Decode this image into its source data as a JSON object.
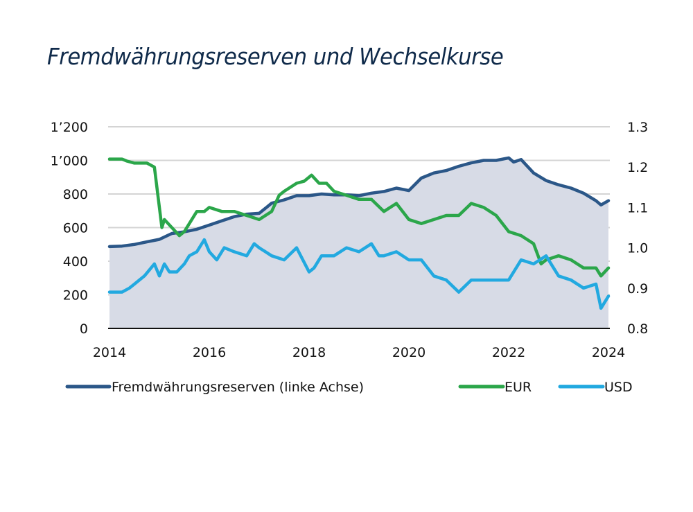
{
  "chart_data": {
    "type": "line",
    "title": "Fremdwährungsreserven und Wechselkurse",
    "xlabel": "",
    "ylabel_left": "",
    "ylabel_right": "",
    "x_ticks": [
      "2014",
      "2016",
      "2018",
      "2020",
      "2022",
      "2024"
    ],
    "x_range": [
      2014,
      2024
    ],
    "y_left_ticks": [
      "0",
      "200",
      "400",
      "600",
      "800",
      "1’000",
      "1’200"
    ],
    "y_left_range": [
      0,
      1200
    ],
    "y_right_ticks": [
      "0.8",
      "0.9",
      "1.0",
      "1.1",
      "1.2",
      "1.3"
    ],
    "y_right_range": [
      0.8,
      1.3
    ],
    "grid": true,
    "legend_position": "bottom",
    "series": [
      {
        "name": "Fremdwährungsreserven (linke Achse)",
        "axis": "left",
        "style": "area-line",
        "color": "#2b5788",
        "fill": "#d7dbe6",
        "x": [
          2014.0,
          2014.25,
          2014.5,
          2014.75,
          2015.0,
          2015.25,
          2015.5,
          2015.75,
          2016.0,
          2016.25,
          2016.5,
          2016.75,
          2017.0,
          2017.25,
          2017.5,
          2017.75,
          2018.0,
          2018.25,
          2018.5,
          2018.75,
          2019.0,
          2019.25,
          2019.5,
          2019.75,
          2020.0,
          2020.25,
          2020.5,
          2020.75,
          2021.0,
          2021.25,
          2021.5,
          2021.75,
          2022.0,
          2022.1,
          2022.25,
          2022.5,
          2022.75,
          2023.0,
          2023.25,
          2023.5,
          2023.75,
          2023.85,
          2024.0
        ],
        "values": [
          487,
          490,
          500,
          515,
          530,
          565,
          575,
          590,
          615,
          640,
          665,
          680,
          685,
          745,
          765,
          790,
          790,
          800,
          795,
          795,
          790,
          805,
          815,
          835,
          820,
          895,
          925,
          940,
          965,
          985,
          1000,
          1000,
          1015,
          990,
          1005,
          925,
          880,
          855,
          835,
          805,
          760,
          735,
          760
        ]
      },
      {
        "name": "EUR",
        "axis": "right",
        "style": "line",
        "color": "#2ba64a",
        "x": [
          2014.0,
          2014.25,
          2014.35,
          2014.5,
          2014.75,
          2014.9,
          2015.05,
          2015.1,
          2015.25,
          2015.4,
          2015.5,
          2015.75,
          2015.9,
          2016.0,
          2016.25,
          2016.5,
          2016.75,
          2017.0,
          2017.25,
          2017.4,
          2017.5,
          2017.75,
          2017.9,
          2018.05,
          2018.2,
          2018.35,
          2018.5,
          2018.75,
          2019.0,
          2019.25,
          2019.5,
          2019.75,
          2020.0,
          2020.25,
          2020.5,
          2020.75,
          2021.0,
          2021.25,
          2021.5,
          2021.75,
          2022.0,
          2022.25,
          2022.5,
          2022.65,
          2022.75,
          2023.0,
          2023.25,
          2023.5,
          2023.75,
          2023.85,
          2024.0
        ],
        "values": [
          1.22,
          1.22,
          1.215,
          1.21,
          1.21,
          1.2,
          1.05,
          1.07,
          1.05,
          1.03,
          1.04,
          1.09,
          1.09,
          1.1,
          1.09,
          1.09,
          1.08,
          1.07,
          1.09,
          1.13,
          1.14,
          1.16,
          1.165,
          1.18,
          1.16,
          1.16,
          1.14,
          1.13,
          1.12,
          1.12,
          1.09,
          1.11,
          1.07,
          1.06,
          1.07,
          1.08,
          1.08,
          1.11,
          1.1,
          1.08,
          1.04,
          1.03,
          1.01,
          0.96,
          0.97,
          0.98,
          0.97,
          0.95,
          0.95,
          0.93,
          0.95
        ]
      },
      {
        "name": "USD",
        "axis": "right",
        "style": "line",
        "color": "#22a9e0",
        "x": [
          2014.0,
          2014.25,
          2014.4,
          2014.5,
          2014.7,
          2014.9,
          2015.0,
          2015.1,
          2015.2,
          2015.35,
          2015.5,
          2015.6,
          2015.75,
          2015.9,
          2016.0,
          2016.15,
          2016.3,
          2016.5,
          2016.75,
          2016.9,
          2017.0,
          2017.25,
          2017.5,
          2017.75,
          2018.0,
          2018.1,
          2018.25,
          2018.5,
          2018.75,
          2019.0,
          2019.25,
          2019.4,
          2019.5,
          2019.75,
          2020.0,
          2020.25,
          2020.5,
          2020.75,
          2021.0,
          2021.25,
          2021.5,
          2021.75,
          2022.0,
          2022.25,
          2022.5,
          2022.75,
          2022.85,
          2023.0,
          2023.25,
          2023.5,
          2023.75,
          2023.85,
          2024.0
        ],
        "values": [
          0.89,
          0.89,
          0.9,
          0.91,
          0.93,
          0.96,
          0.93,
          0.96,
          0.94,
          0.94,
          0.96,
          0.98,
          0.99,
          1.02,
          0.99,
          0.97,
          1.0,
          0.99,
          0.98,
          1.01,
          1.0,
          0.98,
          0.97,
          1.0,
          0.94,
          0.95,
          0.98,
          0.98,
          1.0,
          0.99,
          1.01,
          0.98,
          0.98,
          0.99,
          0.97,
          0.97,
          0.93,
          0.92,
          0.89,
          0.92,
          0.92,
          0.92,
          0.92,
          0.97,
          0.96,
          0.98,
          0.96,
          0.93,
          0.92,
          0.9,
          0.91,
          0.85,
          0.88
        ]
      }
    ]
  },
  "legend": {
    "reserves_label": "Fremdwährungsreserven (linke Achse)",
    "eur_label": "EUR",
    "usd_label": "USD"
  }
}
